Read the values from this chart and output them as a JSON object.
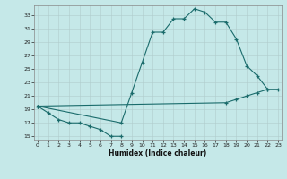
{
  "xlabel": "Humidex (Indice chaleur)",
  "bg_color": "#c5e8e8",
  "line_color": "#1a6b6b",
  "grid_color": "#b0cccc",
  "line1_x": [
    0,
    1,
    2,
    3,
    4,
    5,
    6,
    7,
    8
  ],
  "line1_y": [
    19.5,
    18.5,
    17.5,
    17.0,
    17.0,
    16.5,
    16.0,
    15.0,
    15.0
  ],
  "line2_x": [
    0,
    8,
    9,
    10,
    11,
    12,
    13,
    14,
    15,
    16,
    17,
    18,
    19,
    20,
    21,
    22
  ],
  "line2_y": [
    19.5,
    17.0,
    21.5,
    26.0,
    30.5,
    30.5,
    32.5,
    32.5,
    34.0,
    33.5,
    32.0,
    32.0,
    29.5,
    25.5,
    24.0,
    22.0
  ],
  "line3_x": [
    0,
    18,
    19,
    20,
    21,
    22,
    23
  ],
  "line3_y": [
    19.5,
    20.0,
    20.5,
    21.0,
    21.5,
    22.0,
    22.0
  ],
  "xlim": [
    -0.3,
    23.3
  ],
  "ylim": [
    14.5,
    34.5
  ],
  "yticks": [
    15,
    17,
    19,
    21,
    23,
    25,
    27,
    29,
    31,
    33
  ],
  "xticks": [
    0,
    1,
    2,
    3,
    4,
    5,
    6,
    7,
    8,
    9,
    10,
    11,
    12,
    13,
    14,
    15,
    16,
    17,
    18,
    19,
    20,
    21,
    22,
    23
  ]
}
